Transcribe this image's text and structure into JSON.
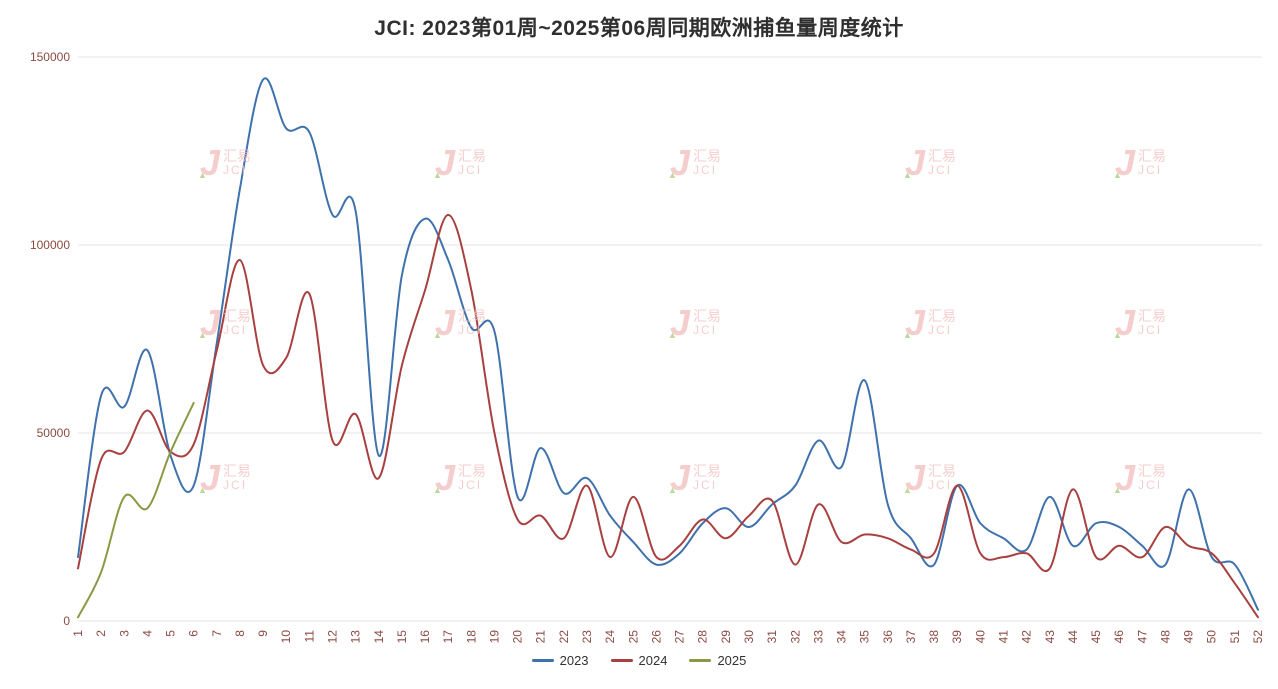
{
  "title": "JCI: 2023第01周~2025第06周同期欧洲捕鱼量周度统计",
  "watermark": {
    "cn": "汇易",
    "en": "JCI"
  },
  "colors": {
    "grid": "#e6e6e6",
    "axis_label": "#8b4a42",
    "title": "#2f2f2f",
    "legend_text": "#333333"
  },
  "chart_data": {
    "type": "line",
    "title": "JCI: 2023第01周~2025第06周同期欧洲捕鱼量周度统计",
    "xlabel": "",
    "ylabel": "",
    "grid": true,
    "legend_position": "bottom",
    "ylim": [
      0,
      150000
    ],
    "yticks": [
      0,
      50000,
      100000,
      150000
    ],
    "x": [
      1,
      2,
      3,
      4,
      5,
      6,
      7,
      8,
      9,
      10,
      11,
      12,
      13,
      14,
      15,
      16,
      17,
      18,
      19,
      20,
      21,
      22,
      23,
      24,
      25,
      26,
      27,
      28,
      29,
      30,
      31,
      32,
      33,
      34,
      35,
      36,
      37,
      38,
      39,
      40,
      41,
      42,
      43,
      44,
      45,
      46,
      47,
      48,
      49,
      50,
      51,
      52
    ],
    "series": [
      {
        "name": "2023",
        "color": "#3f72ad",
        "values": [
          17000,
          60000,
          57000,
          72000,
          44000,
          36000,
          74000,
          115000,
          144000,
          131000,
          130000,
          108000,
          109000,
          44000,
          92000,
          107000,
          96000,
          78000,
          77000,
          33000,
          46000,
          34000,
          38000,
          28000,
          21000,
          15000,
          18000,
          26000,
          30000,
          25000,
          31000,
          36000,
          48000,
          41000,
          64000,
          31000,
          22000,
          15000,
          36000,
          26000,
          22000,
          19000,
          33000,
          20000,
          26000,
          25000,
          20000,
          15000,
          35000,
          17000,
          15000,
          3000
        ]
      },
      {
        "name": "2024",
        "color": "#a84040",
        "values": [
          14000,
          43000,
          45000,
          56000,
          45000,
          47000,
          72000,
          96000,
          68000,
          70000,
          87000,
          48000,
          55000,
          38000,
          68000,
          88000,
          108000,
          88000,
          50000,
          27000,
          28000,
          22000,
          36000,
          17000,
          33000,
          17000,
          20000,
          27000,
          22000,
          28000,
          32000,
          15000,
          31000,
          21000,
          23000,
          22000,
          19000,
          18000,
          36000,
          18000,
          17000,
          18000,
          14000,
          35000,
          17000,
          20000,
          17000,
          25000,
          20000,
          18000,
          10000,
          1000
        ]
      },
      {
        "name": "2025",
        "color": "#8a9a44",
        "values": [
          1000,
          13000,
          33000,
          30000,
          45000,
          58000
        ]
      }
    ]
  },
  "watermark_grid": {
    "cols": [
      200,
      435,
      670,
      905,
      1115
    ],
    "rows": [
      145,
      305,
      460
    ]
  }
}
